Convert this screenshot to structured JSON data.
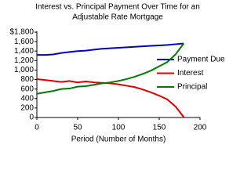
{
  "chart_data": {
    "type": "line",
    "title": "Interest vs. Principal Payment Over Time for an",
    "subtitle": "Adjustable Rate Mortgage",
    "x_label": "Period (Number of Months)",
    "x": [
      0,
      10,
      20,
      30,
      40,
      50,
      60,
      70,
      80,
      90,
      100,
      110,
      120,
      130,
      140,
      150,
      160,
      170,
      180
    ],
    "series": [
      {
        "name": "Payment Due",
        "color": "#0000cc",
        "values": [
          1320,
          1320,
          1330,
          1360,
          1380,
          1400,
          1410,
          1430,
          1450,
          1460,
          1470,
          1480,
          1490,
          1500,
          1510,
          1520,
          1530,
          1545,
          1560
        ]
      },
      {
        "name": "Interest",
        "color": "#e00000",
        "values": [
          810,
          790,
          770,
          750,
          770,
          740,
          760,
          740,
          730,
          720,
          700,
          670,
          640,
          590,
          530,
          460,
          380,
          230,
          10
        ]
      },
      {
        "name": "Principal",
        "color": "#007a00",
        "values": [
          500,
          530,
          560,
          600,
          610,
          650,
          660,
          690,
          720,
          740,
          770,
          810,
          860,
          920,
          990,
          1080,
          1170,
          1330,
          1560
        ]
      }
    ],
    "xlim": [
      0,
      200
    ],
    "xticks": [
      0,
      50,
      100,
      150,
      200
    ],
    "ylim": [
      0,
      1800
    ],
    "yticks": [
      0,
      200,
      400,
      600,
      800,
      {
        "value": 1000,
        "label": "1,000"
      },
      {
        "value": 1200,
        "label": "1,200"
      },
      {
        "value": 1400,
        "label": "1,400"
      },
      {
        "value": 1600,
        "label": "1,600"
      },
      {
        "value": 1800,
        "label": "$1,800"
      }
    ],
    "grid": false,
    "legend": "right"
  }
}
